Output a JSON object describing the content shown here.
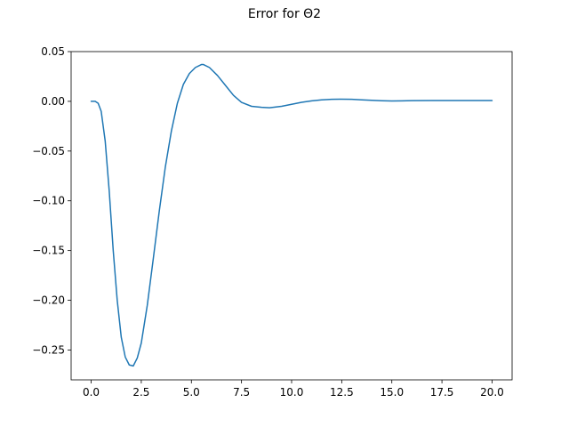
{
  "chart_data": {
    "type": "line",
    "title": "Error for Θ2",
    "xlabel": "",
    "ylabel": "",
    "xlim": [
      -1.0,
      21.0
    ],
    "ylim": [
      -0.28,
      0.05
    ],
    "grid": false,
    "xticks": [
      0.0,
      2.5,
      5.0,
      7.5,
      10.0,
      12.5,
      15.0,
      17.5,
      20.0
    ],
    "xtick_labels": [
      "0.0",
      "2.5",
      "5.0",
      "7.5",
      "10.0",
      "12.5",
      "15.0",
      "17.5",
      "20.0"
    ],
    "yticks": [
      0.05,
      0.0,
      -0.05,
      -0.1,
      -0.15,
      -0.2,
      -0.25
    ],
    "ytick_labels": [
      "0.05",
      "0.00",
      "−0.05",
      "−0.10",
      "−0.15",
      "−0.20",
      "−0.25"
    ],
    "series": [
      {
        "color": "#1f77b4",
        "x": [
          0.0,
          0.2,
          0.35,
          0.5,
          0.7,
          0.9,
          1.1,
          1.3,
          1.5,
          1.7,
          1.9,
          2.1,
          2.3,
          2.5,
          2.8,
          3.1,
          3.4,
          3.7,
          4.0,
          4.3,
          4.6,
          4.9,
          5.2,
          5.5,
          5.6,
          5.9,
          6.3,
          6.7,
          7.1,
          7.5,
          8.0,
          8.5,
          8.9,
          9.5,
          10.0,
          10.5,
          11.0,
          11.5,
          12.0,
          12.5,
          13.0,
          13.5,
          14.0,
          14.5,
          15.0,
          15.5,
          16.0,
          17.0,
          18.0,
          19.0,
          20.0
        ],
        "y": [
          0.0,
          0.0,
          -0.002,
          -0.01,
          -0.04,
          -0.09,
          -0.15,
          -0.2,
          -0.237,
          -0.257,
          -0.265,
          -0.266,
          -0.258,
          -0.243,
          -0.205,
          -0.158,
          -0.11,
          -0.066,
          -0.03,
          -0.002,
          0.017,
          0.028,
          0.034,
          0.037,
          0.037,
          0.034,
          0.026,
          0.016,
          0.006,
          -0.001,
          -0.005,
          -0.006,
          -0.0065,
          -0.005,
          -0.003,
          -0.001,
          0.0005,
          0.0015,
          0.002,
          0.0022,
          0.002,
          0.0015,
          0.001,
          0.0006,
          0.0004,
          0.0005,
          0.0007,
          0.0008,
          0.0008,
          0.0008,
          0.0008
        ]
      }
    ]
  }
}
